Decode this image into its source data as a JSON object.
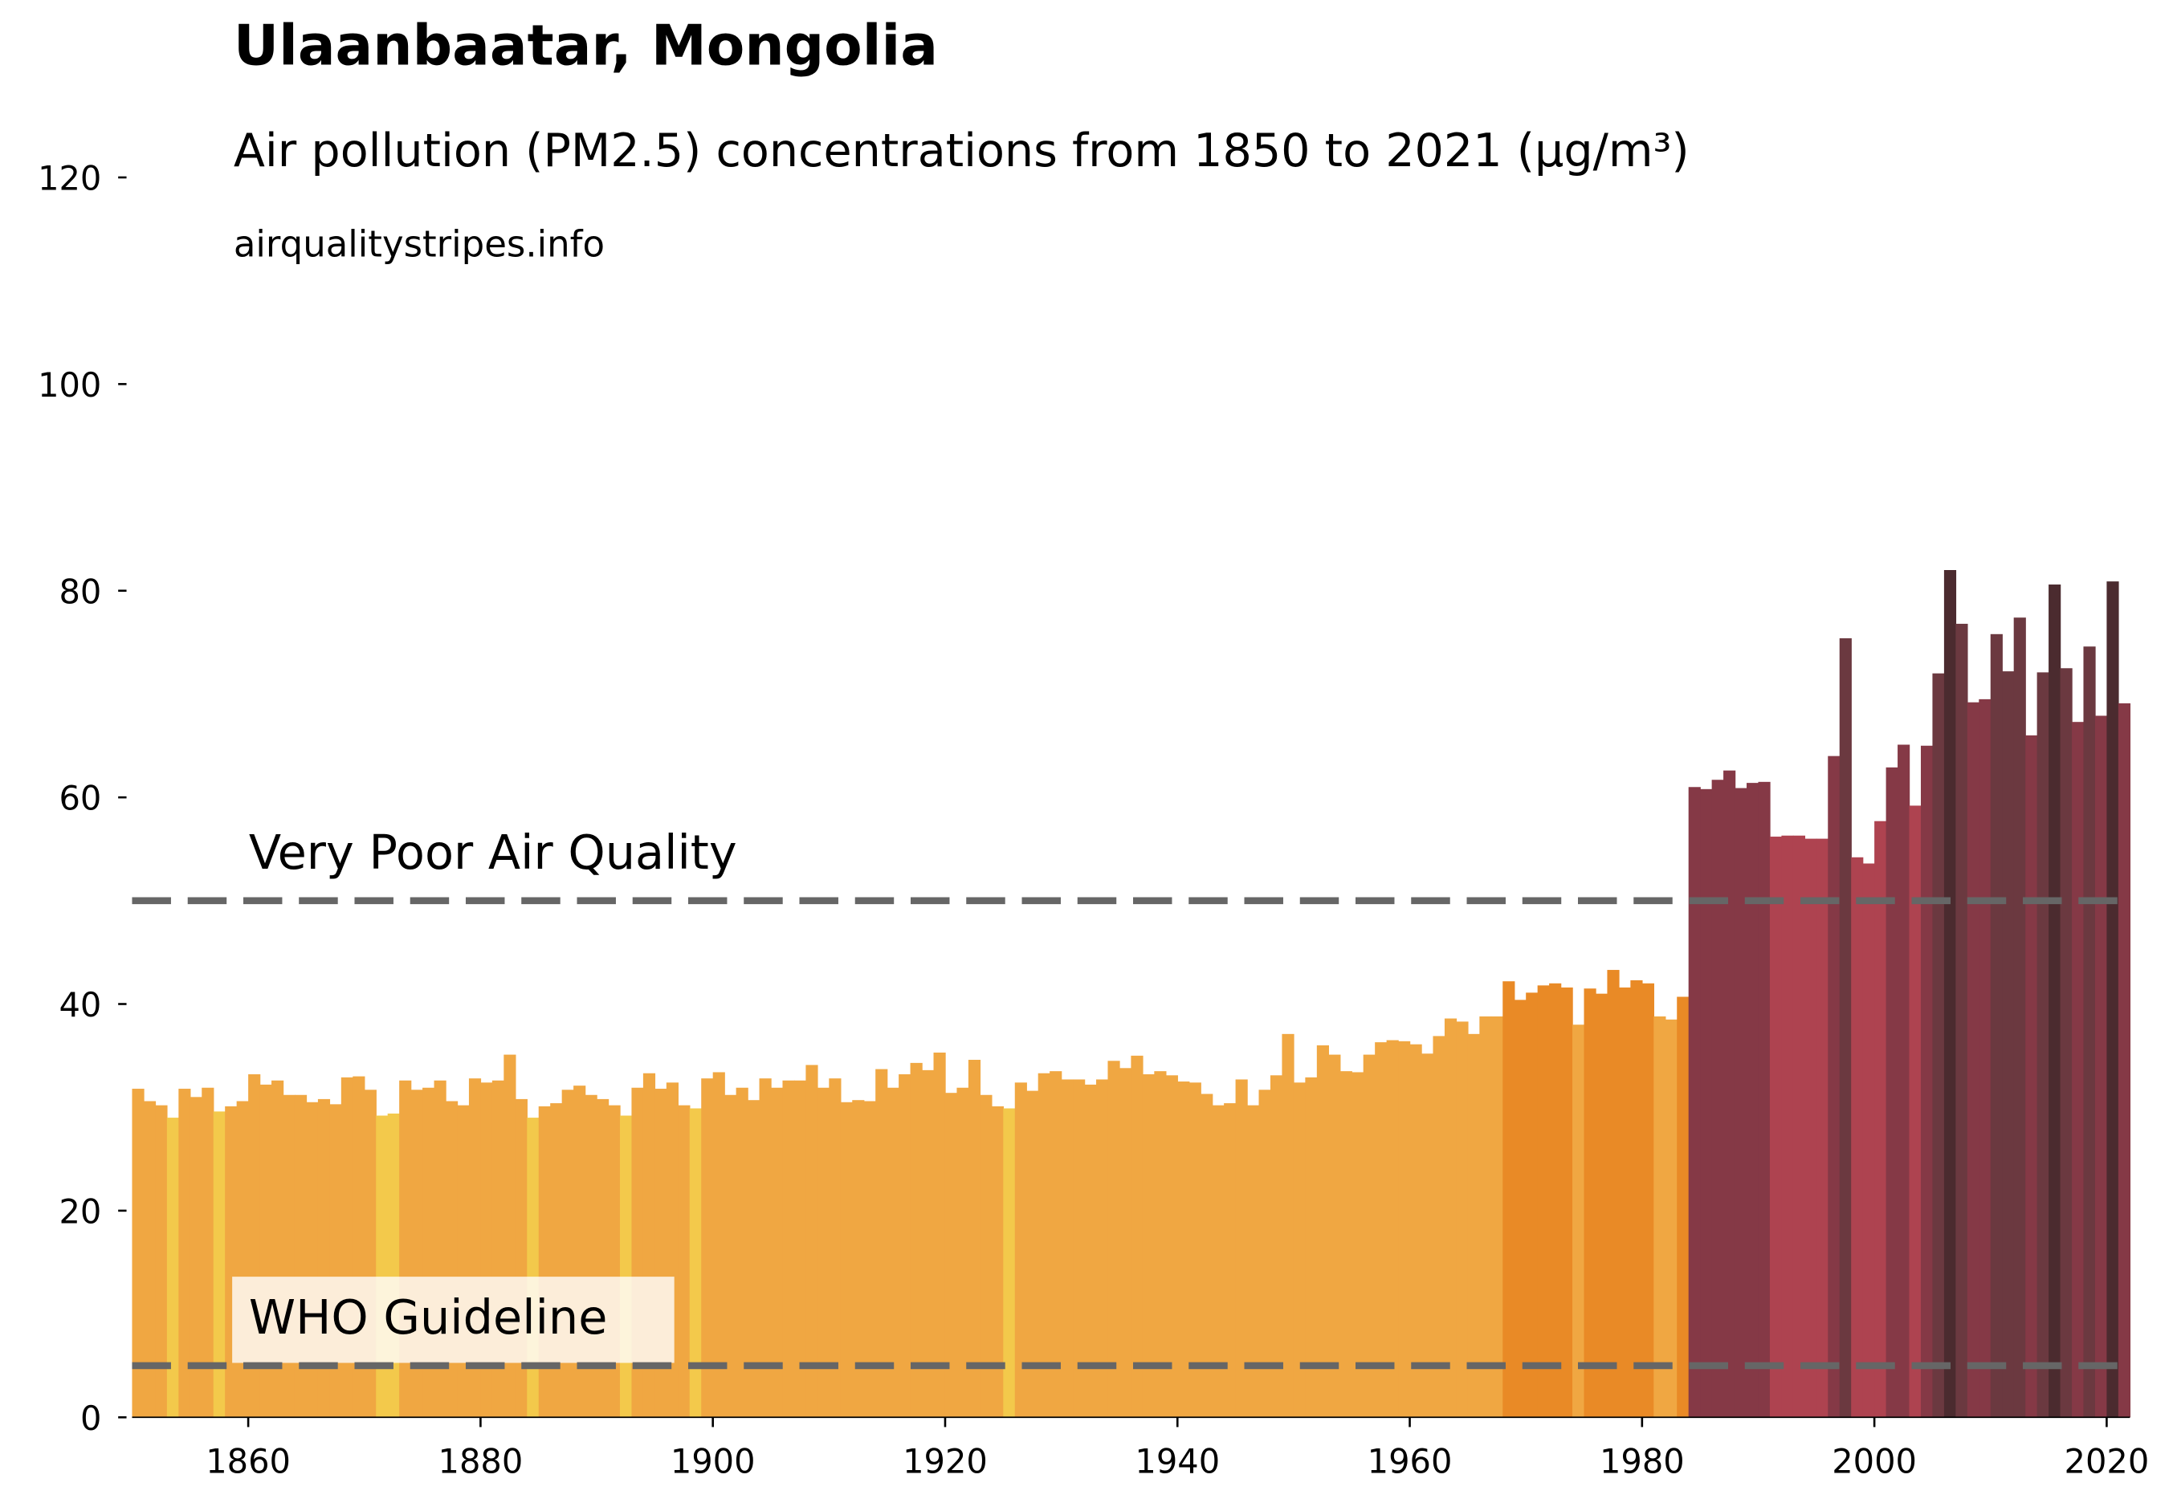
{
  "chart_data": {
    "type": "bar",
    "title": "Ulaanbaatar, Mongolia",
    "subtitle": "Air pollution (PM2.5) concentrations from 1850 to 2021 (µg/m³)",
    "source": "airqualitystripes.info",
    "x": [
      1850,
      1851,
      1852,
      1853,
      1854,
      1855,
      1856,
      1857,
      1858,
      1859,
      1860,
      1861,
      1862,
      1863,
      1864,
      1865,
      1866,
      1867,
      1868,
      1869,
      1870,
      1871,
      1872,
      1873,
      1874,
      1875,
      1876,
      1877,
      1878,
      1879,
      1880,
      1881,
      1882,
      1883,
      1884,
      1885,
      1886,
      1887,
      1888,
      1889,
      1890,
      1891,
      1892,
      1893,
      1894,
      1895,
      1896,
      1897,
      1898,
      1899,
      1900,
      1901,
      1902,
      1903,
      1904,
      1905,
      1906,
      1907,
      1908,
      1909,
      1910,
      1911,
      1912,
      1913,
      1914,
      1915,
      1916,
      1917,
      1918,
      1919,
      1920,
      1921,
      1922,
      1923,
      1924,
      1925,
      1926,
      1927,
      1928,
      1929,
      1930,
      1931,
      1932,
      1933,
      1934,
      1935,
      1936,
      1937,
      1938,
      1939,
      1940,
      1941,
      1942,
      1943,
      1944,
      1945,
      1946,
      1947,
      1948,
      1949,
      1950,
      1951,
      1952,
      1953,
      1954,
      1955,
      1956,
      1957,
      1958,
      1959,
      1960,
      1961,
      1962,
      1963,
      1964,
      1965,
      1966,
      1967,
      1968,
      1969,
      1970,
      1971,
      1972,
      1973,
      1974,
      1975,
      1976,
      1977,
      1978,
      1979,
      1980,
      1981,
      1982,
      1983,
      1984,
      1985,
      1986,
      1987,
      1988,
      1989,
      1990,
      1991,
      1992,
      1993,
      1994,
      1995,
      1996,
      1997,
      1998,
      1999,
      2000,
      2001,
      2002,
      2003,
      2004,
      2005,
      2006,
      2007,
      2008,
      2009,
      2010,
      2011,
      2012,
      2013,
      2014,
      2015,
      2016,
      2017,
      2018,
      2019,
      2020,
      2021
    ],
    "values": [
      31.8,
      30.6,
      30.2,
      29,
      31.8,
      31,
      31.9,
      29.6,
      30.1,
      30.6,
      33.2,
      32.2,
      32.6,
      31.2,
      31.2,
      30.5,
      30.8,
      30.3,
      32.9,
      33,
      31.7,
      29.2,
      29.4,
      32.6,
      31.7,
      31.9,
      32.6,
      30.6,
      30.2,
      32.8,
      32.4,
      32.6,
      35.1,
      30.8,
      29,
      30.1,
      30.4,
      31.7,
      32.1,
      31.2,
      30.8,
      30.2,
      29.2,
      31.9,
      33.3,
      31.8,
      32.4,
      30.2,
      29.9,
      32.8,
      33.4,
      31.2,
      31.9,
      30.7,
      32.8,
      31.9,
      32.6,
      32.6,
      34.1,
      31.9,
      32.8,
      30.5,
      30.7,
      30.6,
      33.7,
      31.9,
      33.2,
      34.3,
      33.6,
      35.3,
      31.4,
      31.9,
      34.6,
      31.2,
      30.1,
      29.9,
      32.4,
      31.6,
      33.3,
      33.5,
      32.7,
      32.7,
      32.2,
      32.7,
      34.5,
      33.8,
      35,
      33.2,
      33.5,
      33.1,
      32.5,
      32.4,
      31.3,
      30.2,
      30.4,
      32.7,
      30.2,
      31.7,
      33.1,
      37.1,
      32.4,
      32.9,
      36,
      35.1,
      33.5,
      33.4,
      35.1,
      36.3,
      36.5,
      36.4,
      36.1,
      35.2,
      36.9,
      38.6,
      38.3,
      37.1,
      38.8,
      38.8,
      42.2,
      40.4,
      41.1,
      41.8,
      42,
      41.6,
      38,
      41.5,
      41,
      43.3,
      41.6,
      42.3,
      42,
      38.8,
      38.5,
      40.7,
      61,
      60.8,
      61.7,
      62.6,
      60.9,
      61.4,
      61.5,
      56.2,
      56.3,
      56.3,
      56,
      56,
      64,
      75.4,
      54.2,
      53.6,
      57.7,
      62.9,
      65.1,
      59.2,
      65,
      72,
      82,
      76.8,
      69.2,
      69.5,
      75.8,
      72.2,
      77.4,
      66,
      72.1,
      80.6,
      72.5,
      67.3,
      74.6,
      67.9,
      80.9,
      69.1
    ],
    "colors": [
      "#f0a742",
      "#f0a742",
      "#f0a742",
      "#f3c94b",
      "#f0a742",
      "#f0a742",
      "#f0a742",
      "#f3c94b",
      "#f0a742",
      "#f0a742",
      "#f0a742",
      "#f0a742",
      "#f0a742",
      "#f0a742",
      "#f0a742",
      "#f0a742",
      "#f0a742",
      "#f0a742",
      "#f0a742",
      "#f0a742",
      "#f0a742",
      "#f3c94b",
      "#f3c94b",
      "#f0a742",
      "#f0a742",
      "#f0a742",
      "#f0a742",
      "#f0a742",
      "#f0a742",
      "#f0a742",
      "#f0a742",
      "#f0a742",
      "#f0a742",
      "#f0a742",
      "#f3c94b",
      "#f0a742",
      "#f0a742",
      "#f0a742",
      "#f0a742",
      "#f0a742",
      "#f0a742",
      "#f0a742",
      "#f3c94b",
      "#f0a742",
      "#f0a742",
      "#f0a742",
      "#f0a742",
      "#f0a742",
      "#f3c94b",
      "#f0a742",
      "#f0a742",
      "#f0a742",
      "#f0a742",
      "#f0a742",
      "#f0a742",
      "#f0a742",
      "#f0a742",
      "#f0a742",
      "#f0a742",
      "#f0a742",
      "#f0a742",
      "#f0a742",
      "#f0a742",
      "#f0a742",
      "#f0a742",
      "#f0a742",
      "#f0a742",
      "#f0a742",
      "#f0a742",
      "#f0a742",
      "#f0a742",
      "#f0a742",
      "#f0a742",
      "#f0a742",
      "#f0a742",
      "#f3c94b",
      "#f0a742",
      "#f0a742",
      "#f0a742",
      "#f0a742",
      "#f0a742",
      "#f0a742",
      "#f0a742",
      "#f0a742",
      "#f0a742",
      "#f0a742",
      "#f0a742",
      "#f0a742",
      "#f0a742",
      "#f0a742",
      "#f0a742",
      "#f0a742",
      "#f0a742",
      "#f0a742",
      "#f0a742",
      "#f0a742",
      "#f0a742",
      "#f0a742",
      "#f0a742",
      "#f0a742",
      "#f0a742",
      "#f0a742",
      "#f0a742",
      "#f0a742",
      "#f0a742",
      "#f0a742",
      "#f0a742",
      "#f0a742",
      "#f0a742",
      "#f0a742",
      "#f0a742",
      "#f0a742",
      "#f0a742",
      "#f0a742",
      "#f0a742",
      "#f0a742",
      "#f0a742",
      "#f0a742",
      "#e98a26",
      "#e98a26",
      "#e98a26",
      "#e98a26",
      "#e98a26",
      "#e98a26",
      "#f0a742",
      "#e98a26",
      "#e98a26",
      "#e98a26",
      "#e98a26",
      "#e98a26",
      "#e98a26",
      "#f0a742",
      "#f0a742",
      "#e98a26",
      "#853946",
      "#853946",
      "#853946",
      "#853946",
      "#853946",
      "#853946",
      "#853946",
      "#ae4350",
      "#ae4350",
      "#ae4350",
      "#ae4350",
      "#ae4350",
      "#853946",
      "#6b3940",
      "#ae4350",
      "#ae4350",
      "#ae4350",
      "#853946",
      "#853946",
      "#ae4350",
      "#853946",
      "#6b3940",
      "#4b2b2f",
      "#6b3940",
      "#853946",
      "#853946",
      "#6b3940",
      "#6b3940",
      "#6b3940",
      "#853946",
      "#6b3940",
      "#4b2b2f",
      "#6b3940",
      "#853946",
      "#6b3940",
      "#853946",
      "#4b2b2f",
      "#853946"
    ],
    "xlim": [
      1850,
      2022
    ],
    "ylim": [
      0,
      120
    ],
    "xticks": [
      1860,
      1880,
      1900,
      1920,
      1940,
      1960,
      1980,
      2000,
      2020
    ],
    "yticks": [
      0,
      20,
      40,
      60,
      80,
      100,
      120
    ],
    "reference_lines": [
      {
        "label": "Very Poor Air Quality",
        "value": 50,
        "color": "#666666"
      },
      {
        "label": "WHO Guideline",
        "value": 5,
        "color": "#666666"
      }
    ]
  }
}
